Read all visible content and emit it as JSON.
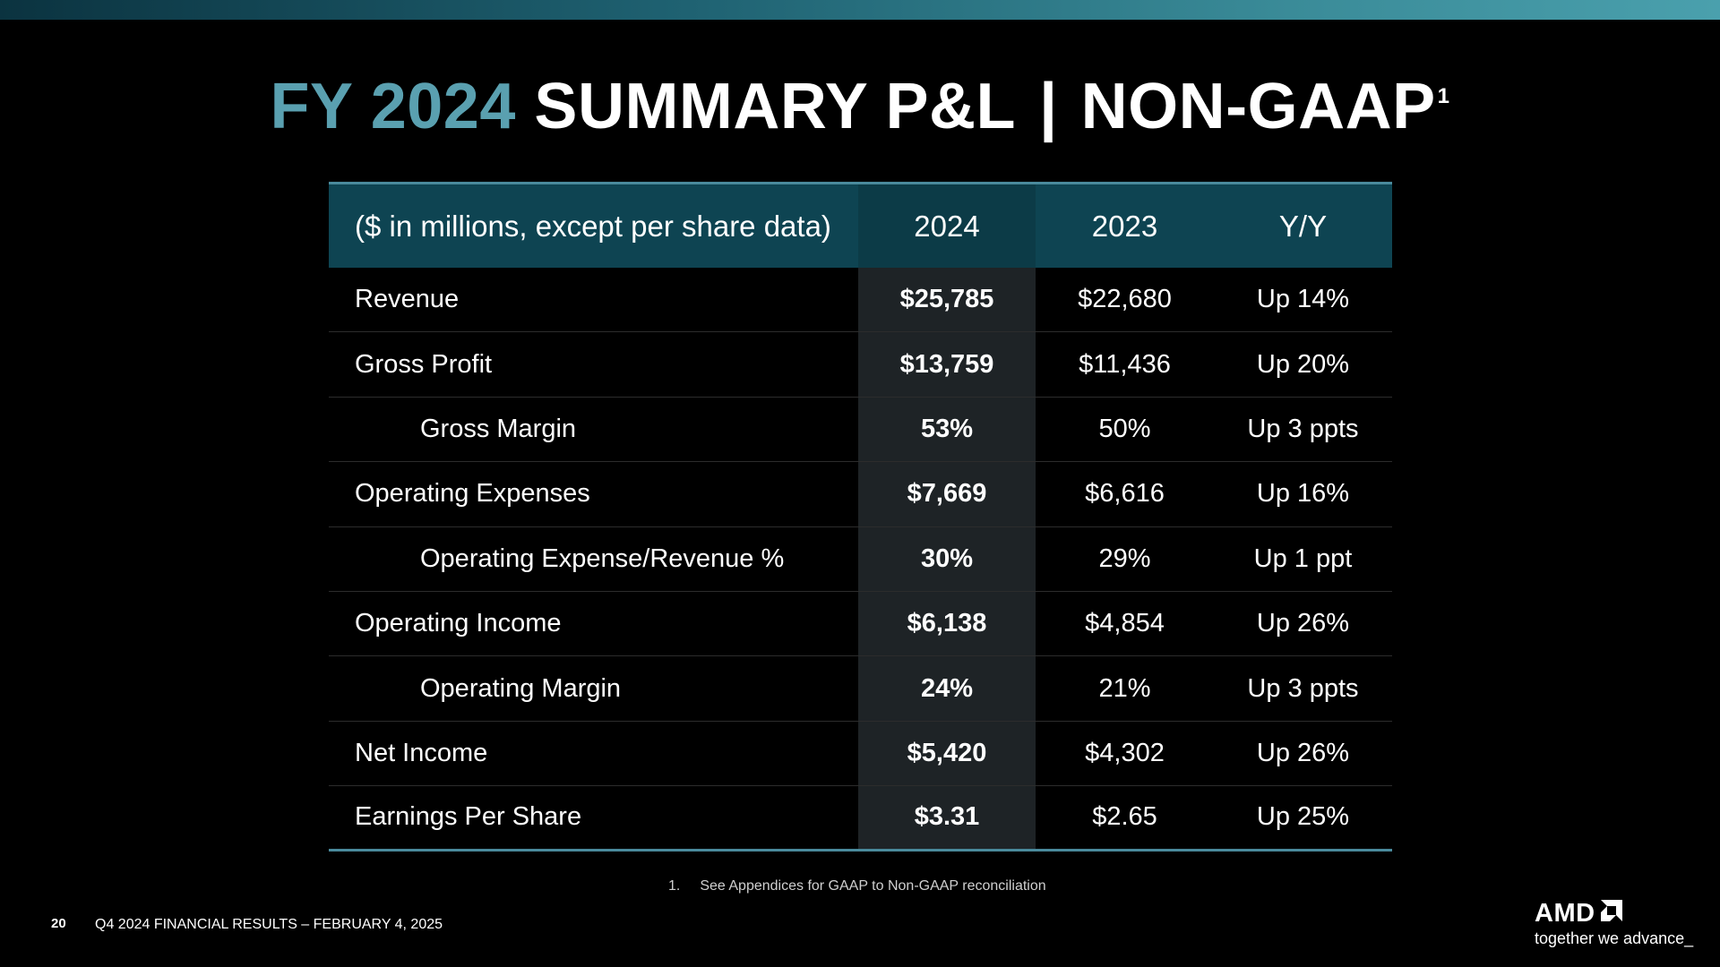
{
  "title": {
    "accent": "FY 2024",
    "main": "SUMMARY P&L",
    "separator": "|",
    "suffix": "NON-GAAP",
    "superscript": "1"
  },
  "table": {
    "headers": [
      "($ in millions, except per share data)",
      "2024",
      "2023",
      "Y/Y"
    ],
    "rows": [
      {
        "label": "Revenue",
        "v2024": "$25,785",
        "v2023": "$22,680",
        "yy": "Up 14%"
      },
      {
        "label": "Gross Profit",
        "v2024": "$13,759",
        "v2023": "$11,436",
        "yy": "Up 20%"
      },
      {
        "label": "Gross Margin",
        "v2024": "53%",
        "v2023": "50%",
        "yy": "Up 3 ppts"
      },
      {
        "label": "Operating Expenses",
        "v2024": "$7,669",
        "v2023": "$6,616",
        "yy": "Up 16%"
      },
      {
        "label": "Operating Expense/Revenue %",
        "v2024": "30%",
        "v2023": "29%",
        "yy": "Up 1 ppt"
      },
      {
        "label": "Operating Income",
        "v2024": "$6,138",
        "v2023": "$4,854",
        "yy": "Up 26%"
      },
      {
        "label": "Operating Margin",
        "v2024": "24%",
        "v2023": "21%",
        "yy": "Up 3 ppts"
      },
      {
        "label": "Net Income",
        "v2024": "$5,420",
        "v2023": "$4,302",
        "yy": "Up 26%"
      },
      {
        "label": "Earnings Per Share",
        "v2024": "$3.31",
        "v2023": "$2.65",
        "yy": "Up 25%"
      }
    ]
  },
  "footnote": {
    "number": "1.",
    "text": "See Appendices for GAAP to Non-GAAP reconciliation"
  },
  "footer": {
    "page_number": "20",
    "text": "Q4 2024 FINANCIAL RESULTS – FEBRUARY 4, 2025"
  },
  "logo": {
    "wordmark": "AMD",
    "tagline": "together we advance_",
    "mark_icon": "amd-arrow-icon"
  },
  "colors": {
    "background": "#000000",
    "accent": "#5aa0b0",
    "header_fill": "#0e4452",
    "highlight_column": "#1e2326",
    "rule": "#4a8a9c"
  }
}
